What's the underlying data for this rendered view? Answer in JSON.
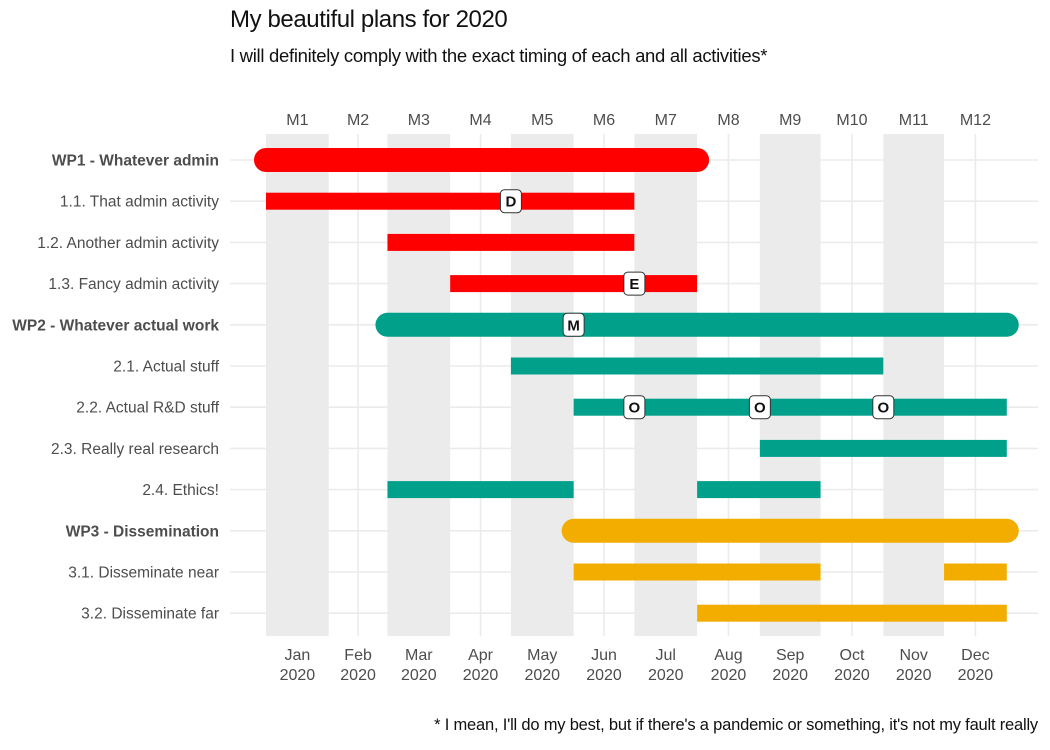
{
  "title": "My beautiful plans for 2020",
  "subtitle": "I will definitely comply with the exact timing of each and all activities*",
  "caption": "* I mean, I'll do my best, but if there's a pandemic or something, it's not my fault really",
  "colors": {
    "WP1": "#ff0000",
    "WP2": "#00a08a",
    "WP3": "#f2ad00",
    "band": "#ebebeb",
    "grid": "#ebebeb",
    "text": "#4d4d4d"
  },
  "chart_data": {
    "type": "gantt",
    "x_top_labels": [
      "M1",
      "M2",
      "M3",
      "M4",
      "M5",
      "M6",
      "M7",
      "M8",
      "M9",
      "M10",
      "M11",
      "M12"
    ],
    "x_bottom_labels": [
      [
        "Jan",
        "2020"
      ],
      [
        "Feb",
        "2020"
      ],
      [
        "Mar",
        "2020"
      ],
      [
        "Apr",
        "2020"
      ],
      [
        "May",
        "2020"
      ],
      [
        "Jun",
        "2020"
      ],
      [
        "Jul",
        "2020"
      ],
      [
        "Aug",
        "2020"
      ],
      [
        "Sep",
        "2020"
      ],
      [
        "Oct",
        "2020"
      ],
      [
        "Nov",
        "2020"
      ],
      [
        "Dec",
        "2020"
      ]
    ],
    "shaded_months": [
      1,
      3,
      5,
      7,
      9,
      11
    ],
    "tasks": [
      {
        "label": "WP1 - Whatever admin",
        "wp": "WP1",
        "is_wp": true,
        "segments": [
          [
            "2020-01-01",
            "2020-07-31"
          ]
        ]
      },
      {
        "label": "1.1. That admin activity",
        "wp": "WP1",
        "is_wp": false,
        "segments": [
          [
            "2020-01-01",
            "2020-06-30"
          ]
        ]
      },
      {
        "label": "1.2. Another admin activity",
        "wp": "WP1",
        "is_wp": false,
        "segments": [
          [
            "2020-03-01",
            "2020-06-30"
          ]
        ]
      },
      {
        "label": "1.3. Fancy admin activity",
        "wp": "WP1",
        "is_wp": false,
        "segments": [
          [
            "2020-04-01",
            "2020-07-31"
          ]
        ]
      },
      {
        "label": "WP2 - Whatever actual work",
        "wp": "WP2",
        "is_wp": true,
        "segments": [
          [
            "2020-03-01",
            "2020-12-31"
          ]
        ]
      },
      {
        "label": "2.1. Actual stuff",
        "wp": "WP2",
        "is_wp": false,
        "segments": [
          [
            "2020-05-01",
            "2020-10-31"
          ]
        ]
      },
      {
        "label": "2.2. Actual R&D stuff",
        "wp": "WP2",
        "is_wp": false,
        "segments": [
          [
            "2020-06-01",
            "2020-12-31"
          ]
        ]
      },
      {
        "label": "2.3. Really real research",
        "wp": "WP2",
        "is_wp": false,
        "segments": [
          [
            "2020-09-01",
            "2020-12-31"
          ]
        ]
      },
      {
        "label": "2.4. Ethics!",
        "wp": "WP2",
        "is_wp": false,
        "segments": [
          [
            "2020-03-01",
            "2020-05-31"
          ],
          [
            "2020-08-01",
            "2020-09-30"
          ]
        ]
      },
      {
        "label": "WP3 - Dissemination",
        "wp": "WP3",
        "is_wp": true,
        "segments": [
          [
            "2020-06-01",
            "2020-12-31"
          ]
        ]
      },
      {
        "label": "3.1. Disseminate near",
        "wp": "WP3",
        "is_wp": false,
        "segments": [
          [
            "2020-06-01",
            "2020-09-30"
          ],
          [
            "2020-12-01",
            "2020-12-31"
          ]
        ]
      },
      {
        "label": "3.2. Disseminate far",
        "wp": "WP3",
        "is_wp": false,
        "segments": [
          [
            "2020-08-01",
            "2020-12-31"
          ]
        ]
      }
    ],
    "milestones": [
      {
        "label": "D",
        "task": "1.1. That admin activity",
        "date": "2020-05-01"
      },
      {
        "label": "E",
        "task": "1.3. Fancy admin activity",
        "date": "2020-07-01"
      },
      {
        "label": "M",
        "task": "WP2 - Whatever actual work",
        "date": "2020-06-01"
      },
      {
        "label": "O",
        "task": "2.2. Actual R&D stuff",
        "date": "2020-07-01"
      },
      {
        "label": "O",
        "task": "2.2. Actual R&D stuff",
        "date": "2020-09-01"
      },
      {
        "label": "O",
        "task": "2.2. Actual R&D stuff",
        "date": "2020-11-01"
      }
    ]
  }
}
